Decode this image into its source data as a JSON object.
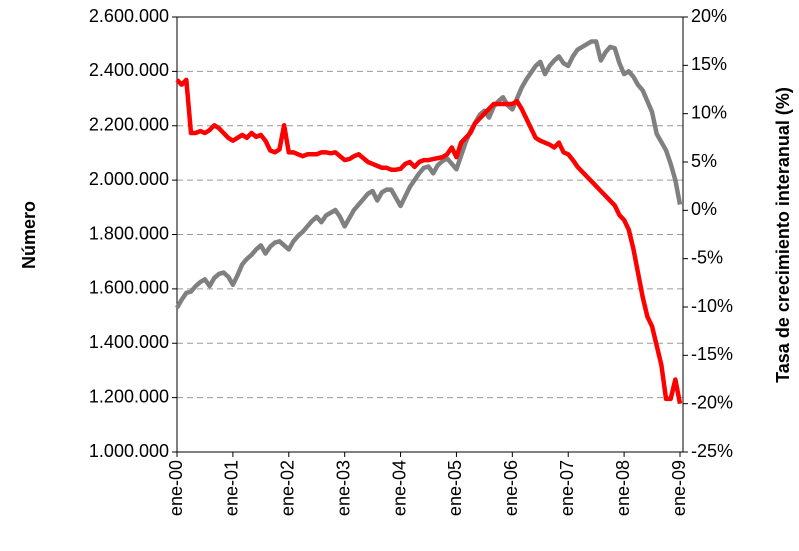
{
  "chart_data": {
    "type": "line",
    "categories": [
      "ene-00",
      null,
      null,
      null,
      null,
      null,
      null,
      null,
      null,
      null,
      null,
      null,
      "ene-01",
      null,
      null,
      null,
      null,
      null,
      null,
      null,
      null,
      null,
      null,
      null,
      "ene-02",
      null,
      null,
      null,
      null,
      null,
      null,
      null,
      null,
      null,
      null,
      null,
      "ene-03",
      null,
      null,
      null,
      null,
      null,
      null,
      null,
      null,
      null,
      null,
      null,
      "ene-04",
      null,
      null,
      null,
      null,
      null,
      null,
      null,
      null,
      null,
      null,
      null,
      "ene-05",
      null,
      null,
      null,
      null,
      null,
      null,
      null,
      null,
      null,
      null,
      null,
      "ene-06",
      null,
      null,
      null,
      null,
      null,
      null,
      null,
      null,
      null,
      null,
      null,
      "ene-07",
      null,
      null,
      null,
      null,
      null,
      null,
      null,
      null,
      null,
      null,
      null,
      "ene-08",
      null,
      null,
      null,
      null,
      null,
      null,
      null,
      null,
      null,
      null,
      null,
      "ene-09"
    ],
    "series": [
      {
        "name": "Número",
        "color": "#808080",
        "values": [
          1530000,
          1560000,
          1585000,
          1590000,
          1610000,
          1625000,
          1635000,
          1610000,
          1640000,
          1655000,
          1660000,
          1645000,
          1615000,
          1650000,
          1690000,
          1710000,
          1725000,
          1745000,
          1760000,
          1730000,
          1755000,
          1770000,
          1775000,
          1760000,
          1745000,
          1775000,
          1795000,
          1810000,
          1830000,
          1850000,
          1865000,
          1845000,
          1870000,
          1880000,
          1890000,
          1865000,
          1830000,
          1860000,
          1890000,
          1910000,
          1930000,
          1950000,
          1960000,
          1925000,
          1955000,
          1965000,
          1965000,
          1935000,
          1905000,
          1940000,
          1975000,
          2000000,
          2025000,
          2045000,
          2050000,
          2025000,
          2055000,
          2070000,
          2080000,
          2060000,
          2040000,
          2090000,
          2140000,
          2180000,
          2210000,
          2240000,
          2255000,
          2230000,
          2270000,
          2290000,
          2305000,
          2275000,
          2260000,
          2300000,
          2340000,
          2370000,
          2395000,
          2420000,
          2435000,
          2390000,
          2420000,
          2440000,
          2455000,
          2430000,
          2420000,
          2455000,
          2480000,
          2490000,
          2500000,
          2510000,
          2510000,
          2440000,
          2470000,
          2490000,
          2485000,
          2430000,
          2390000,
          2400000,
          2380000,
          2350000,
          2330000,
          2290000,
          2250000,
          2170000,
          2140000,
          2110000,
          2060000,
          2000000,
          1910000
        ]
      },
      {
        "name": "Tasa de crecimiento interanual (%)",
        "color": "#ff0000",
        "axis": "y2",
        "values": [
          13.5,
          13,
          13.5,
          8,
          8,
          8.2,
          8,
          8.3,
          8.8,
          8.5,
          8,
          7.5,
          7.2,
          7.5,
          7.8,
          7.5,
          8,
          7.6,
          7.8,
          7.2,
          6.2,
          6,
          6.3,
          8.8,
          6,
          6,
          5.8,
          5.6,
          5.8,
          5.8,
          5.8,
          6,
          6,
          5.9,
          6,
          5.6,
          5.2,
          5.3,
          5.6,
          5.8,
          5.4,
          5,
          4.8,
          4.6,
          4.4,
          4.4,
          4.2,
          4.2,
          4.3,
          4.8,
          5,
          4.5,
          5,
          5.2,
          5.2,
          5.3,
          5.4,
          5.5,
          5.8,
          6.5,
          5.5,
          7,
          7.5,
          8,
          9,
          9.5,
          10,
          10.5,
          11,
          11,
          11,
          11,
          11,
          11.3,
          10.5,
          9.5,
          8.5,
          7.5,
          7.2,
          7,
          6.8,
          6.5,
          7,
          6,
          5.8,
          5.2,
          4.5,
          4,
          3.5,
          3,
          2.5,
          2,
          1.5,
          1,
          0.5,
          -0.5,
          -1,
          -2,
          -4,
          -6.5,
          -9,
          -11,
          -12,
          -14,
          -16,
          -19.5,
          -19.5,
          -17.5,
          -20
        ]
      }
    ],
    "ylabel": "Número",
    "y2label": "Tasa de crecimiento interanual (%)",
    "ylim": [
      1000000,
      2600000
    ],
    "yticks": [
      {
        "value": 1000000,
        "label": "1.000.000"
      },
      {
        "value": 1200000,
        "label": "1.200.000"
      },
      {
        "value": 1400000,
        "label": "1.400.000"
      },
      {
        "value": 1600000,
        "label": "1.600.000"
      },
      {
        "value": 1800000,
        "label": "1.800.000"
      },
      {
        "value": 2000000,
        "label": "2.000.000"
      },
      {
        "value": 2200000,
        "label": "2.200.000"
      },
      {
        "value": 2400000,
        "label": "2.400.000"
      },
      {
        "value": 2600000,
        "label": "2.600.000"
      }
    ],
    "y2lim": [
      -25,
      20
    ],
    "y2ticks": [
      {
        "value": -25,
        "label": "-25%"
      },
      {
        "value": -20,
        "label": "-20%"
      },
      {
        "value": -15,
        "label": "-15%"
      },
      {
        "value": -10,
        "label": "-10%"
      },
      {
        "value": -5,
        "label": "-5%"
      },
      {
        "value": 0,
        "label": "0%"
      },
      {
        "value": 5,
        "label": "5%"
      },
      {
        "value": 10,
        "label": "10%"
      },
      {
        "value": 15,
        "label": "15%"
      },
      {
        "value": 20,
        "label": "20%"
      }
    ],
    "grid": true
  }
}
